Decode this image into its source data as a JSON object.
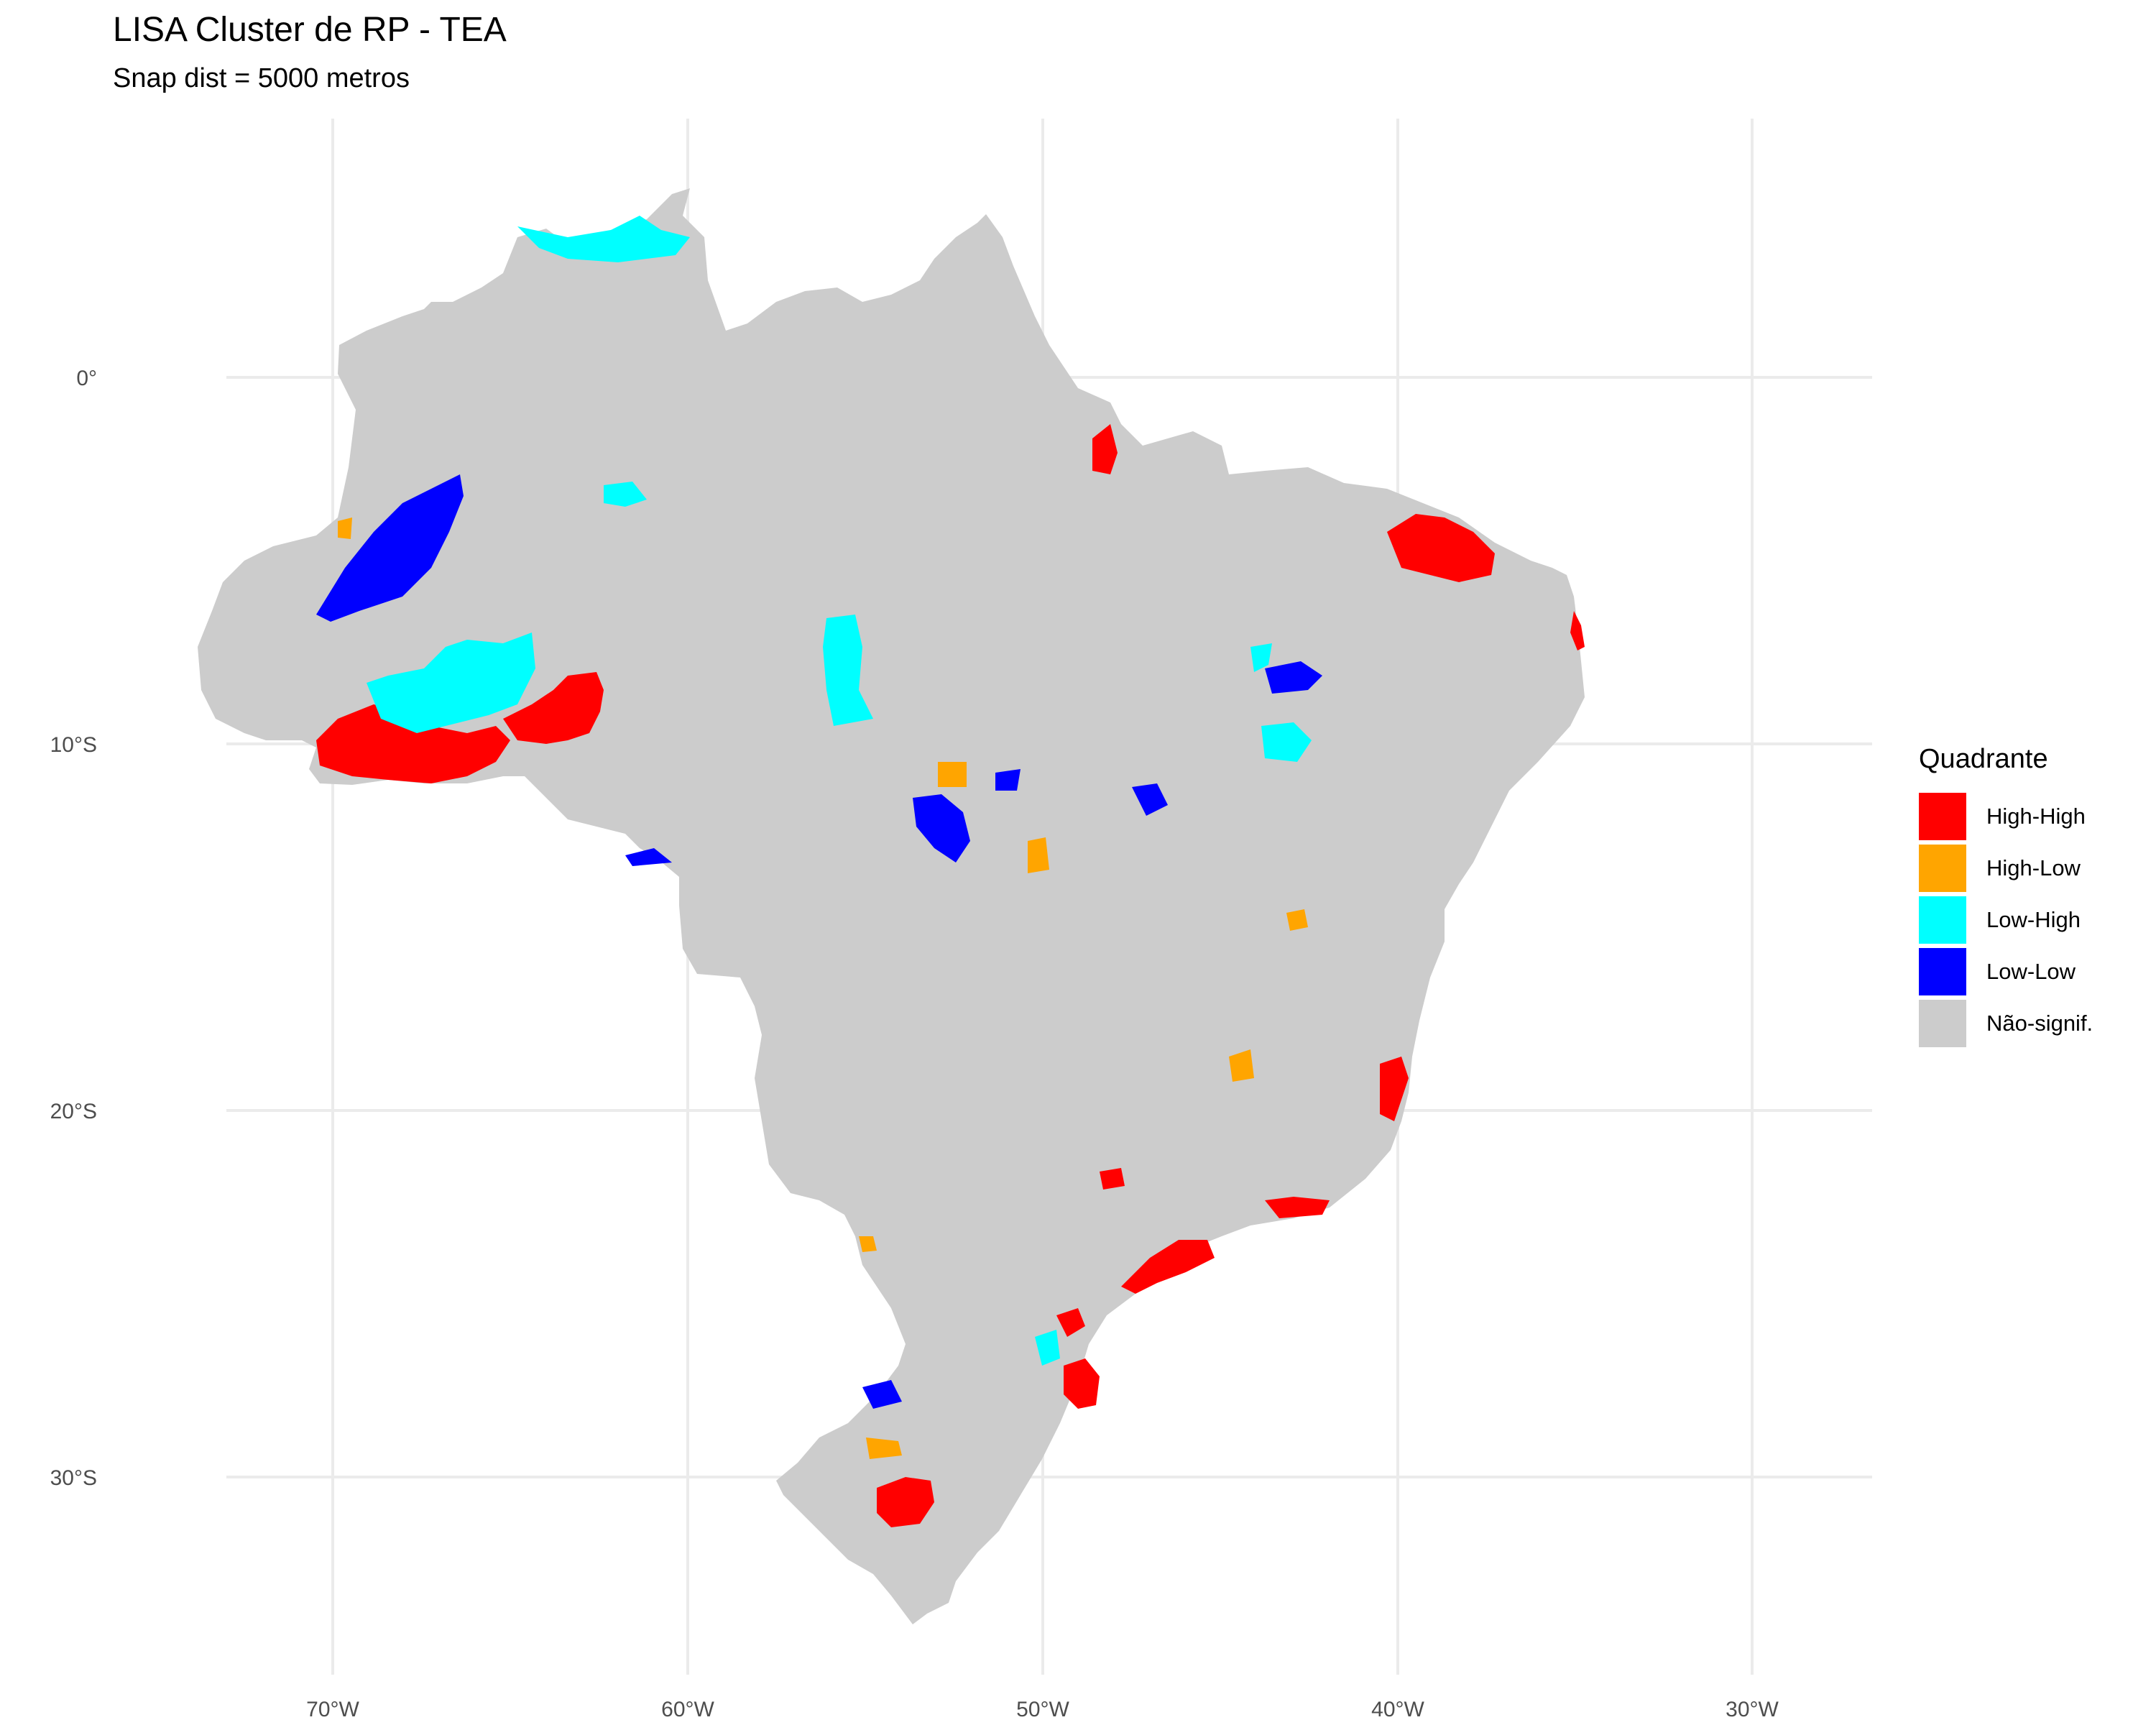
{
  "title": "LISA Cluster de RP - TEA",
  "subtitle": "Snap dist = 5000 metros",
  "legend": {
    "title": "Quadrante",
    "items": [
      {
        "label": "High-High",
        "color": "#ff0000"
      },
      {
        "label": "High-Low",
        "color": "#ffa500"
      },
      {
        "label": "Low-High",
        "color": "#00ffff"
      },
      {
        "label": "Low-Low",
        "color": "#0000ff"
      },
      {
        "label": "Não-signif.",
        "color": "#cccccc"
      }
    ]
  },
  "axes": {
    "x_ticks": [
      "70°W",
      "60°W",
      "50°W",
      "40°W",
      "30°W"
    ],
    "y_ticks": [
      "0°",
      "10°S",
      "20°S",
      "30°S"
    ],
    "grid": true
  },
  "map": {
    "region": "Brazil",
    "background_color": "#cccccc",
    "gridline_color": "#ebebeb"
  }
}
